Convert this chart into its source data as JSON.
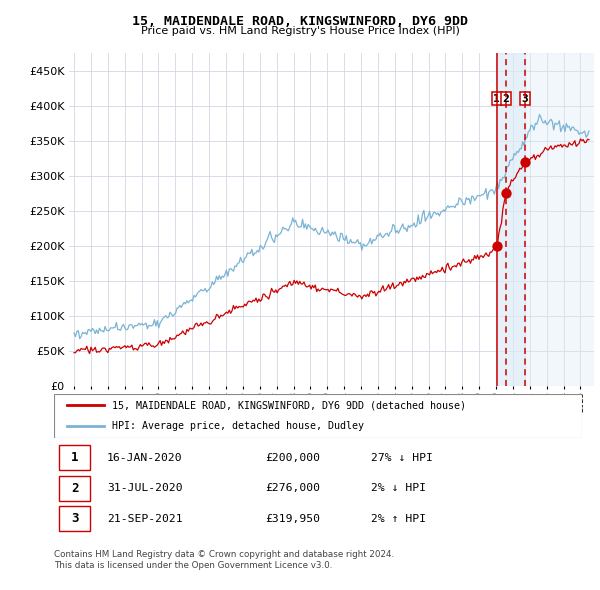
{
  "title": "15, MAIDENDALE ROAD, KINGSWINFORD, DY6 9DD",
  "subtitle": "Price paid vs. HM Land Registry's House Price Index (HPI)",
  "legend_line1": "15, MAIDENDALE ROAD, KINGSWINFORD, DY6 9DD (detached house)",
  "legend_line2": "HPI: Average price, detached house, Dudley",
  "transactions": [
    {
      "num": 1,
      "date": "16-JAN-2020",
      "price": 200000,
      "hpi_diff": "27% ↓ HPI",
      "x_year": 2020.04
    },
    {
      "num": 2,
      "date": "31-JUL-2020",
      "price": 276000,
      "hpi_diff": "2% ↓ HPI",
      "x_year": 2020.58
    },
    {
      "num": 3,
      "date": "21-SEP-2021",
      "price": 319950,
      "hpi_diff": "2% ↑ HPI",
      "x_year": 2021.72
    }
  ],
  "footnote1": "Contains HM Land Registry data © Crown copyright and database right 2024.",
  "footnote2": "This data is licensed under the Open Government Licence v3.0.",
  "hpi_color": "#7ab3d4",
  "price_color": "#cc0000",
  "background_chart": "#ffffff",
  "grid_color": "#d0d8e4",
  "ylim": [
    0,
    475000
  ],
  "xlim_start": 1994.7,
  "xlim_end": 2025.8,
  "shade_color": "#daeaf7",
  "shade_right_color": "#daeaf7"
}
